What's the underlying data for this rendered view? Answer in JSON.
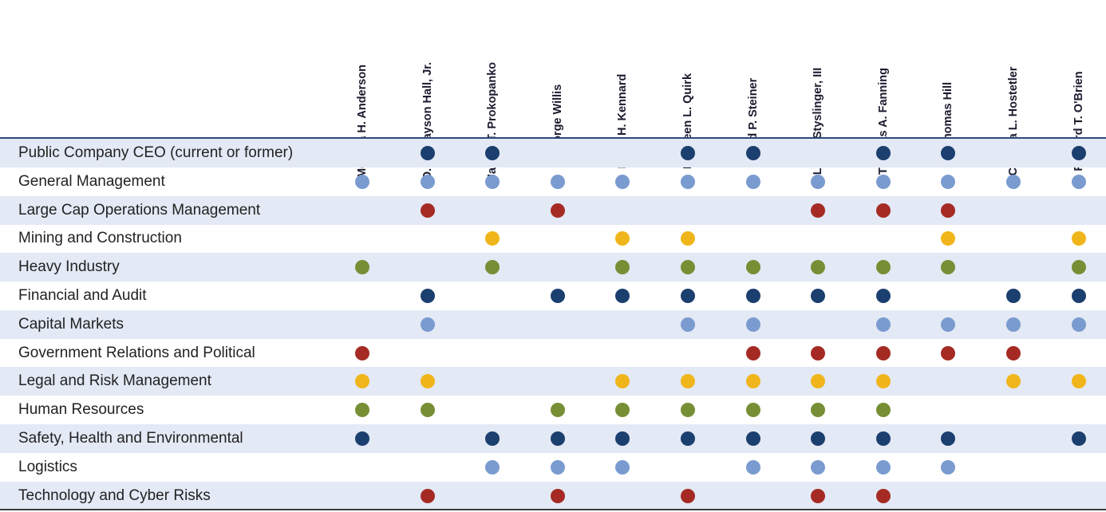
{
  "directors": [
    "Melissa H. Anderson",
    "O.B. Grayson Hall, Jr.",
    "James T. Prokopanko",
    "George Willis",
    "Lydia H. Kennard",
    "Kathleen L. Quirk",
    "David P. Steiner",
    "Lee J. Styslinger, III",
    "Thomas A. Fanning",
    "J. Thomas Hill",
    "Cynthia L. Hostetler",
    "Richard T. O'Brien"
  ],
  "skills": [
    {
      "label": "Public Company CEO (current or former)",
      "color": "#1b3f6e",
      "marks": [
        0,
        1,
        1,
        0,
        0,
        1,
        1,
        0,
        1,
        1,
        0,
        1
      ]
    },
    {
      "label": "General Management",
      "color": "#7a9bcf",
      "marks": [
        1,
        1,
        1,
        1,
        1,
        1,
        1,
        1,
        1,
        1,
        1,
        1
      ]
    },
    {
      "label": "Large Cap Operations Management",
      "color": "#a52a24",
      "marks": [
        0,
        1,
        0,
        1,
        0,
        0,
        0,
        1,
        1,
        1,
        0,
        0
      ]
    },
    {
      "label": "Mining and Construction",
      "color": "#f0b51a",
      "marks": [
        0,
        0,
        1,
        0,
        1,
        1,
        0,
        0,
        0,
        1,
        0,
        1
      ]
    },
    {
      "label": "Heavy Industry",
      "color": "#768f35",
      "marks": [
        1,
        0,
        1,
        0,
        1,
        1,
        1,
        1,
        1,
        1,
        0,
        1
      ]
    },
    {
      "label": "Financial and Audit",
      "color": "#1b3f6e",
      "marks": [
        0,
        1,
        0,
        1,
        1,
        1,
        1,
        1,
        1,
        0,
        1,
        1
      ]
    },
    {
      "label": "Capital Markets",
      "color": "#7a9bcf",
      "marks": [
        0,
        1,
        0,
        0,
        0,
        1,
        1,
        0,
        1,
        1,
        1,
        1
      ]
    },
    {
      "label": "Government Relations and Political",
      "color": "#a52a24",
      "marks": [
        1,
        0,
        0,
        0,
        0,
        0,
        1,
        1,
        1,
        1,
        1,
        0
      ]
    },
    {
      "label": "Legal and Risk Management",
      "color": "#f0b51a",
      "marks": [
        1,
        1,
        0,
        0,
        1,
        1,
        1,
        1,
        1,
        0,
        1,
        1
      ]
    },
    {
      "label": "Human Resources",
      "color": "#768f35",
      "marks": [
        1,
        1,
        0,
        1,
        1,
        1,
        1,
        1,
        1,
        0,
        0,
        0
      ]
    },
    {
      "label": "Safety, Health and Environmental",
      "color": "#1b3f6e",
      "marks": [
        1,
        0,
        1,
        1,
        1,
        1,
        1,
        1,
        1,
        1,
        0,
        1
      ]
    },
    {
      "label": "Logistics",
      "color": "#7a9bcf",
      "marks": [
        0,
        0,
        1,
        1,
        1,
        0,
        1,
        1,
        1,
        1,
        0,
        0
      ]
    },
    {
      "label": "Technology and Cyber Risks",
      "color": "#a52a24",
      "marks": [
        0,
        1,
        0,
        1,
        0,
        1,
        0,
        1,
        1,
        0,
        0,
        0
      ]
    }
  ],
  "colors": {
    "row_shade": "#e3e9f5",
    "header_rule": "#2d4a7a"
  }
}
